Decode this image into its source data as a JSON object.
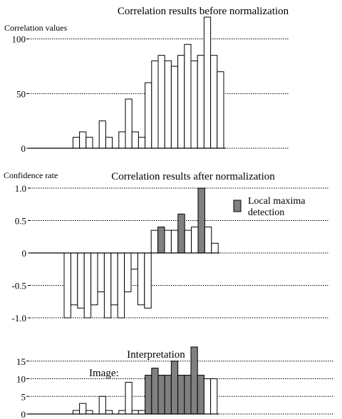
{
  "chart_data": [
    {
      "type": "bar",
      "title": "Correlation results before normalization",
      "ylabel": "Correlation values",
      "ylim": [
        0,
        120
      ],
      "yticks": [
        0,
        50,
        100
      ],
      "grid": true,
      "values": [
        0,
        0,
        10,
        15,
        10,
        0,
        25,
        10,
        0,
        15,
        45,
        15,
        10,
        60,
        80,
        85,
        80,
        75,
        85,
        95,
        80,
        85,
        120,
        85,
        70
      ]
    },
    {
      "type": "bar",
      "title": "Correlation results after normalization",
      "ylabel": "Confidence rate",
      "ylim": [
        -1.0,
        1.0
      ],
      "yticks": [
        -1.0,
        -0.5,
        0,
        0.5,
        1.0
      ],
      "ytick_labels": [
        "-1.0",
        "-0.5",
        "0",
        "0.5",
        "1.0"
      ],
      "grid": true,
      "highlight_color": "#808080",
      "legend": [
        {
          "label": "Local maxima detection",
          "lines": [
            "Local maxima",
            "detection"
          ],
          "color": "#808080"
        }
      ],
      "legend_position": "right",
      "values": [
        -1.0,
        -0.8,
        -0.85,
        -1.0,
        -0.8,
        -0.6,
        -1.0,
        -0.8,
        -1.0,
        -0.6,
        -0.25,
        -0.8,
        -0.85,
        0.35,
        0.4,
        0.35,
        0.35,
        0.6,
        0.35,
        0.4,
        1.0,
        0.4,
        0.15
      ],
      "highlighted": [
        14,
        17,
        20
      ]
    },
    {
      "type": "bar",
      "title": "Interpretation",
      "annotation": "Image:",
      "ylim": [
        0,
        20
      ],
      "yticks": [
        0,
        5,
        10,
        15
      ],
      "grid": true,
      "highlight_color": "#808080",
      "values": [
        0,
        0,
        1,
        3,
        1,
        0,
        5,
        1,
        0,
        1,
        9,
        1,
        1,
        11,
        13,
        11,
        11,
        15,
        11,
        11,
        19,
        11,
        10,
        10
      ],
      "highlighted": [
        13,
        14,
        15,
        16,
        17,
        18,
        19,
        20,
        21
      ]
    }
  ]
}
